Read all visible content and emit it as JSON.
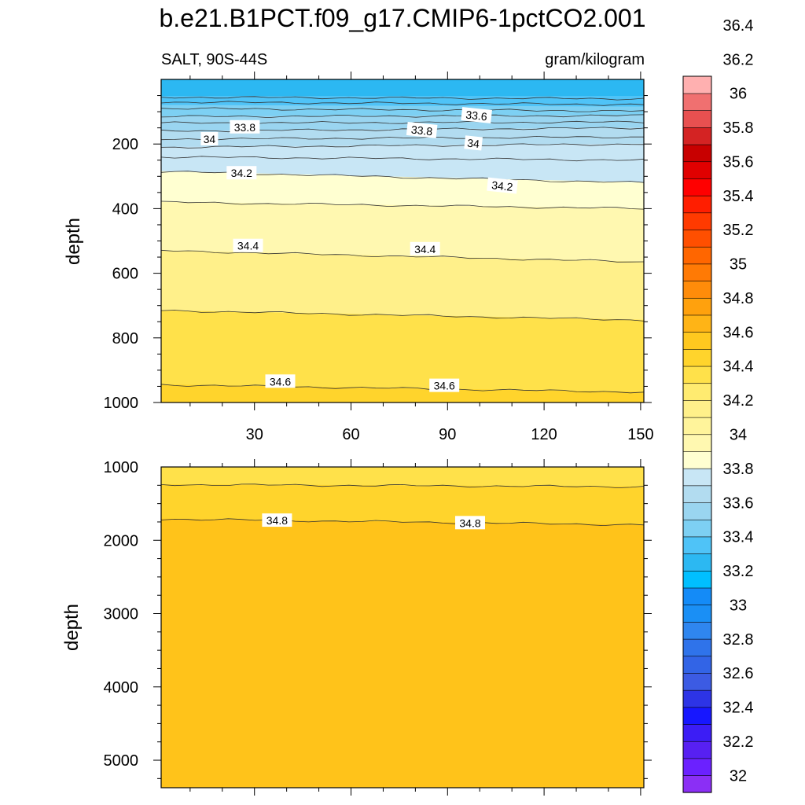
{
  "chart_data": {
    "type": "contour",
    "title": "b.e21.B1PCT.f09_g17.CMIP6-1pctCO2.001",
    "left_string": "SALT, 90S-44S",
    "right_string": "gram/kilogram",
    "colorbar": {
      "labels": [
        "32",
        "32.2",
        "32.4",
        "32.6",
        "32.8",
        "33",
        "33.2",
        "33.4",
        "33.6",
        "33.8",
        "34",
        "34.2",
        "34.4",
        "34.6",
        "34.8",
        "35",
        "35.2",
        "35.4",
        "35.6",
        "35.8",
        "36",
        "36.2",
        "36.4"
      ],
      "level_min": 32,
      "level_step": 0.1,
      "colors": [
        "#8b2ff5",
        "#6b21ff",
        "#5720f2",
        "#3c1df5",
        "#1717ff",
        "#2d34e6",
        "#3c5be3",
        "#3264e6",
        "#2f73ea",
        "#2f86ef",
        "#1a8ff5",
        "#148bf7",
        "#00bfff",
        "#2cb8f2",
        "#4fc3f7",
        "#7dd0f3",
        "#9ad5f0",
        "#b2dcf0",
        "#c8e6f5",
        "#ffffd1",
        "#fff8b0",
        "#fff49b",
        "#fff08a",
        "#ffeb70",
        "#ffe14a",
        "#ffd42c",
        "#ffc81f",
        "#ffb416",
        "#ffa10d",
        "#ff8c0a",
        "#ff7a05",
        "#ff6600",
        "#ff4f00",
        "#ff3a00",
        "#ff1e00",
        "#ff0000",
        "#e00000",
        "#c80000",
        "#d42323",
        "#e85050",
        "#f07070",
        "#ffb0b0"
      ]
    },
    "panels": [
      {
        "name": "upper",
        "ylabel": "depth",
        "xlim": [
          1,
          151
        ],
        "ylim": [
          0,
          1000
        ],
        "x_ticks": [
          "30",
          "60",
          "90",
          "120",
          "150"
        ],
        "y_ticks": [
          "200",
          "400",
          "600",
          "800",
          "1000"
        ],
        "bands": [
          {
            "top": [
              0,
              0
            ],
            "bottom": [
              52,
              52
            ],
            "color": "#2cb8f2"
          },
          {
            "top": [
              52,
              52
            ],
            "bottom": [
              80,
              85
            ],
            "color": "#4fc3f7"
          },
          {
            "top": [
              80,
              85
            ],
            "bottom": [
              115,
              112
            ],
            "color": "#7dd0f3"
          },
          {
            "top": [
              115,
              112
            ],
            "bottom": [
              160,
              150
            ],
            "color": "#9ad5f0"
          },
          {
            "top": [
              160,
              150
            ],
            "bottom": [
              210,
              200
            ],
            "color": "#b2dcf0"
          },
          {
            "top": [
              210,
              200
            ],
            "bottom": [
              285,
              320
            ],
            "color": "#c8e6f5"
          },
          {
            "top": [
              285,
              320
            ],
            "bottom": [
              380,
              400
            ],
            "color": "#ffffd1"
          },
          {
            "top": [
              380,
              400
            ],
            "bottom": [
              530,
              565
            ],
            "color": "#fff8b0"
          },
          {
            "top": [
              530,
              565
            ],
            "bottom": [
              715,
              745
            ],
            "color": "#fff08a"
          },
          {
            "top": [
              715,
              745
            ],
            "bottom": [
              945,
              968
            ],
            "color": "#ffe14a"
          },
          {
            "top": [
              945,
              968
            ],
            "bottom": [
              1000,
              1000
            ],
            "color": "#ffd42c"
          }
        ],
        "contour_lines": [
          {
            "left": 55,
            "right": 60
          },
          {
            "left": 70,
            "right": 78
          },
          {
            "left": 90,
            "right": 98
          },
          {
            "left": 115,
            "right": 112
          },
          {
            "left": 135,
            "right": 132
          },
          {
            "left": 160,
            "right": 150
          },
          {
            "left": 185,
            "right": 178
          },
          {
            "left": 210,
            "right": 200
          },
          {
            "left": 240,
            "right": 250
          },
          {
            "left": 285,
            "right": 320
          },
          {
            "left": 380,
            "right": 400
          },
          {
            "left": 530,
            "right": 565
          },
          {
            "left": 715,
            "right": 745
          },
          {
            "left": 945,
            "right": 968
          }
        ],
        "contour_labels": [
          {
            "text": "33.6",
            "x": 99,
            "y": 112,
            "angle": 6
          },
          {
            "text": "33.8",
            "x": 27,
            "y": 148,
            "angle": 0
          },
          {
            "text": "33.8",
            "x": 82,
            "y": 158,
            "angle": 6
          },
          {
            "text": "34",
            "x": 16,
            "y": 185,
            "angle": 0
          },
          {
            "text": "34",
            "x": 98,
            "y": 198,
            "angle": 6
          },
          {
            "text": "34.2",
            "x": 26,
            "y": 290,
            "angle": 0
          },
          {
            "text": "34.2",
            "x": 107,
            "y": 330,
            "angle": 6
          },
          {
            "text": "34.4",
            "x": 28,
            "y": 515,
            "angle": 0
          },
          {
            "text": "34.4",
            "x": 83,
            "y": 525,
            "angle": 0
          },
          {
            "text": "34.6",
            "x": 38,
            "y": 935,
            "angle": 0
          },
          {
            "text": "34.6",
            "x": 89,
            "y": 948,
            "angle": 0
          }
        ]
      },
      {
        "name": "lower",
        "ylabel": "depth",
        "xlim": [
          1,
          151
        ],
        "ylim": [
          1000,
          5375
        ],
        "x_ticks": [],
        "y_ticks": [
          "1000",
          "2000",
          "3000",
          "4000",
          "5000"
        ],
        "bands": [
          {
            "top": [
              1000,
              1000
            ],
            "bottom": [
              1240,
              1270
            ],
            "color": "#ffe14a"
          },
          {
            "top": [
              1240,
              1270
            ],
            "bottom": [
              1710,
              1790
            ],
            "color": "#ffd42c"
          },
          {
            "top": [
              1710,
              1790
            ],
            "bottom": [
              5375,
              5375
            ],
            "color": "#ffc31a"
          }
        ],
        "contour_lines": [
          {
            "left": 1240,
            "right": 1270
          },
          {
            "left": 1710,
            "right": 1790
          }
        ],
        "contour_labels": [
          {
            "text": "34.8",
            "x": 37,
            "y": 1730,
            "angle": 0
          },
          {
            "text": "34.8",
            "x": 97,
            "y": 1765,
            "angle": 0
          }
        ]
      }
    ]
  }
}
